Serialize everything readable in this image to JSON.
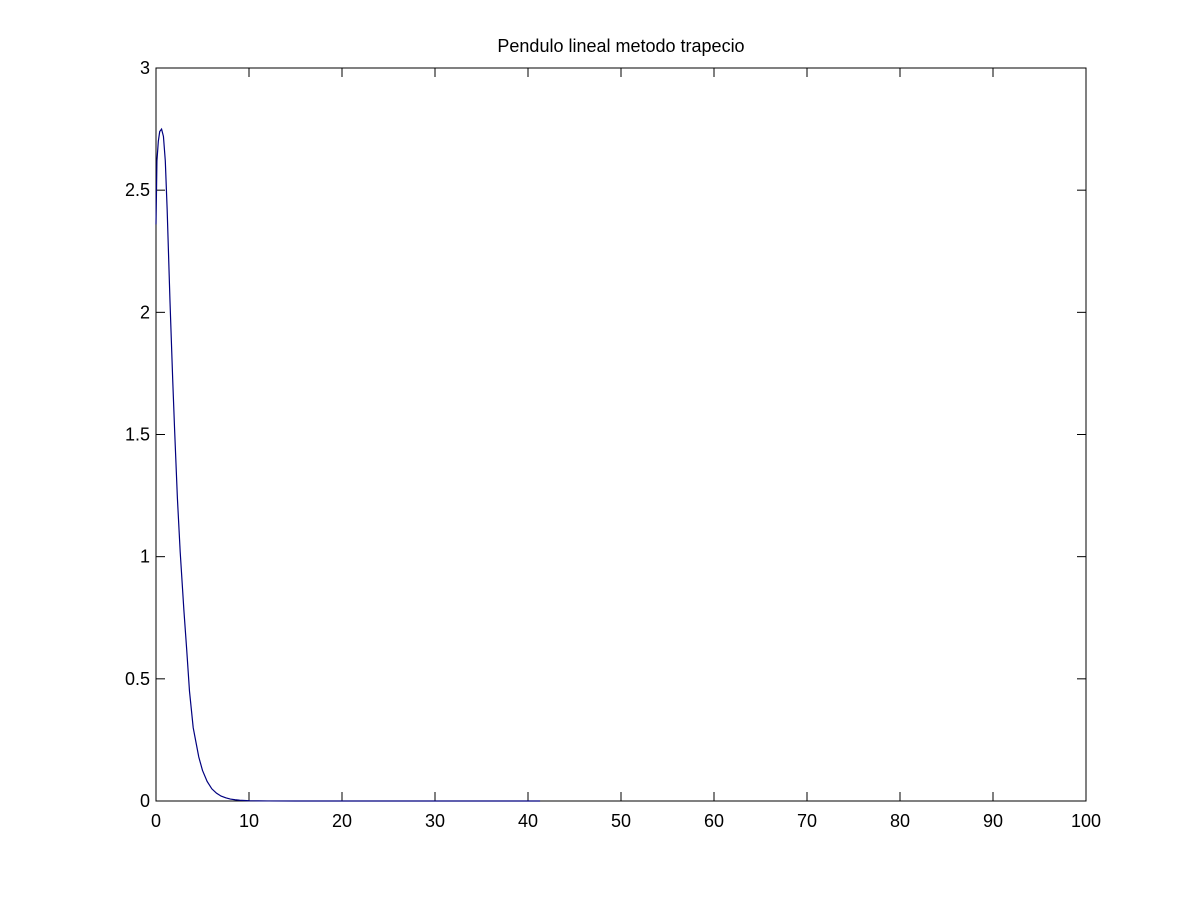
{
  "chart_data": {
    "type": "line",
    "title": "Pendulo lineal metodo trapecio",
    "xlabel": "",
    "ylabel": "",
    "xlim": [
      0,
      100
    ],
    "ylim": [
      0,
      3
    ],
    "x_ticks": [
      0,
      10,
      20,
      30,
      40,
      50,
      60,
      70,
      80,
      90,
      100
    ],
    "x_tick_labels": [
      "0",
      "10",
      "20",
      "30",
      "40",
      "50",
      "60",
      "70",
      "80",
      "90",
      "100"
    ],
    "y_ticks": [
      0,
      0.5,
      1,
      1.5,
      2,
      2.5,
      3
    ],
    "y_tick_labels": [
      "0",
      "0.5",
      "1",
      "1.5",
      "2",
      "2.5",
      "3"
    ],
    "grid": false,
    "line_color": "#00007f",
    "series": [
      {
        "x": [
          0,
          0.1,
          0.25,
          0.4,
          0.6,
          0.8,
          1.0,
          1.2,
          1.5,
          1.8,
          2.0,
          2.3,
          2.6,
          3.0,
          3.3,
          3.6,
          4.0,
          4.3,
          4.6,
          5.0,
          5.5,
          6.0,
          6.5,
          7.0,
          7.5,
          8.0,
          8.5,
          9.0,
          10.0,
          11.0,
          12.0,
          15.0,
          20.0,
          25.0,
          30.0,
          35.0,
          40.0,
          41.3
        ],
        "y": [
          2.36,
          2.62,
          2.7,
          2.74,
          2.75,
          2.72,
          2.62,
          2.42,
          2.05,
          1.72,
          1.52,
          1.24,
          1.02,
          0.78,
          0.62,
          0.45,
          0.3,
          0.24,
          0.18,
          0.125,
          0.08,
          0.05,
          0.032,
          0.02,
          0.013,
          0.008,
          0.005,
          0.003,
          0.001,
          0.0005,
          0.0002,
          0,
          0,
          0,
          0,
          0,
          0,
          0
        ]
      }
    ]
  }
}
